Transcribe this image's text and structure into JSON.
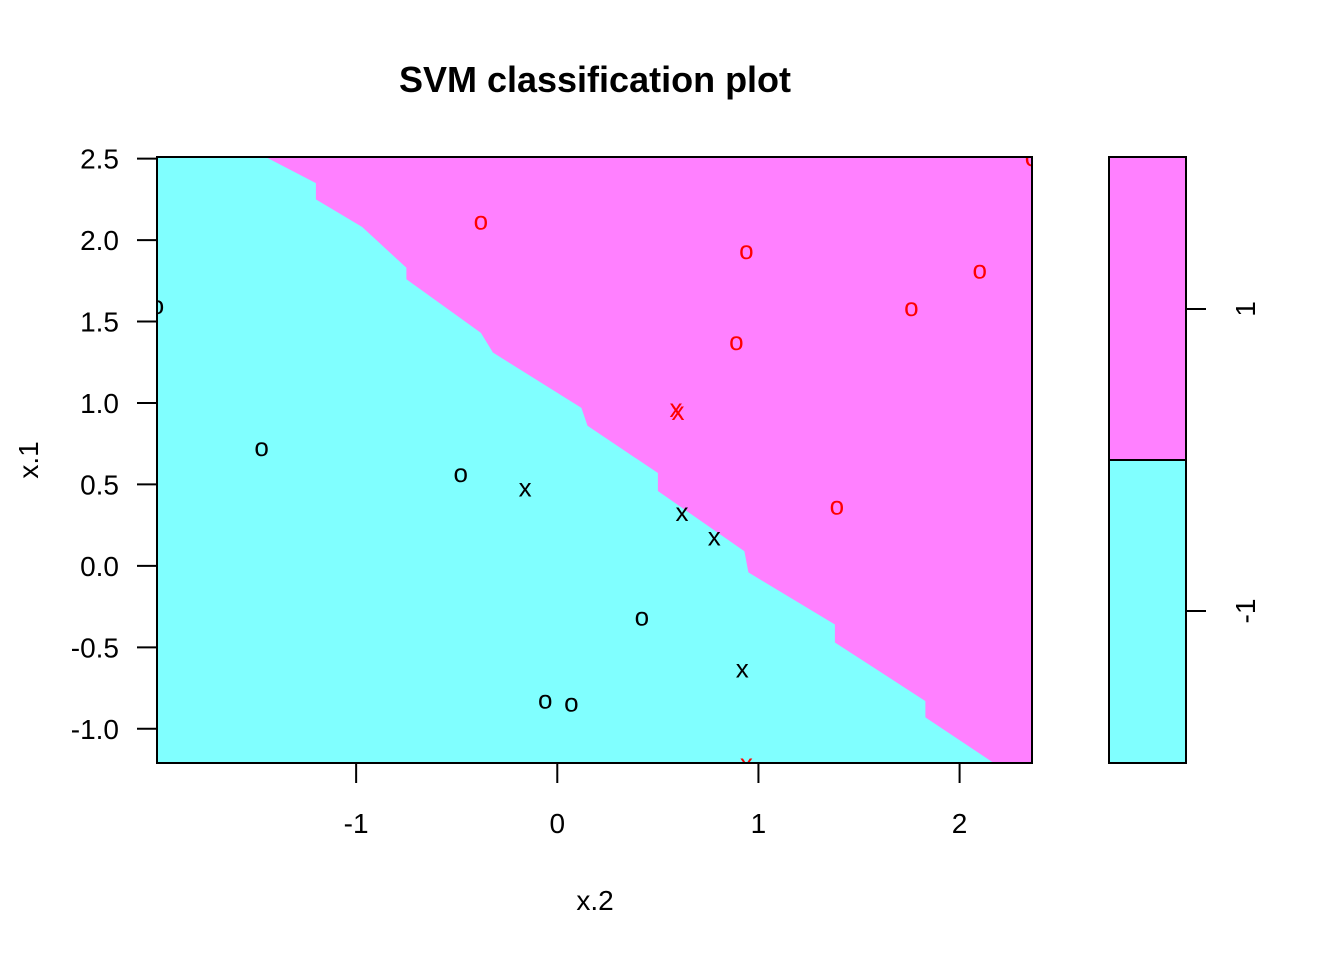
{
  "chart_data": {
    "type": "scatter",
    "title": "SVM classification plot",
    "xlabel": "x.2",
    "ylabel": "x.1",
    "xlim": [
      -1.99,
      2.36
    ],
    "ylim": [
      -1.21,
      2.51
    ],
    "xticks": [
      "-1",
      "0",
      "1",
      "2"
    ],
    "xtick_values": [
      -1,
      0,
      1,
      2
    ],
    "yticks": [
      "2.5",
      "2.0",
      "1.5",
      "1.0",
      "0.5",
      "0.0",
      "-0.5",
      "-1.0"
    ],
    "ytick_values": [
      2.5,
      2.0,
      1.5,
      1.0,
      0.5,
      0.0,
      -0.5,
      -1.0
    ],
    "regions": [
      {
        "class": "-1",
        "color": "#80FFFF"
      },
      {
        "class": "1",
        "color": "#FF80FF"
      }
    ],
    "decision_boundary": [
      {
        "x": -1.45,
        "y": 2.51
      },
      {
        "x": -1.2,
        "y": 2.35
      },
      {
        "x": -1.2,
        "y": 2.25
      },
      {
        "x": -0.97,
        "y": 2.08
      },
      {
        "x": -0.75,
        "y": 1.83
      },
      {
        "x": -0.75,
        "y": 1.76
      },
      {
        "x": -0.38,
        "y": 1.43
      },
      {
        "x": -0.32,
        "y": 1.31
      },
      {
        "x": 0.12,
        "y": 0.97
      },
      {
        "x": 0.15,
        "y": 0.86
      },
      {
        "x": 0.5,
        "y": 0.57
      },
      {
        "x": 0.5,
        "y": 0.46
      },
      {
        "x": 0.93,
        "y": 0.09
      },
      {
        "x": 0.95,
        "y": -0.04
      },
      {
        "x": 1.38,
        "y": -0.36
      },
      {
        "x": 1.38,
        "y": -0.47
      },
      {
        "x": 1.83,
        "y": -0.83
      },
      {
        "x": 1.83,
        "y": -0.93
      },
      {
        "x": 2.17,
        "y": -1.21
      }
    ],
    "legend": {
      "position": "right",
      "labels": [
        "1",
        "-1"
      ]
    },
    "series": [
      {
        "class": "1",
        "color": "#FF0000",
        "points": [
          {
            "x": -0.38,
            "y": 2.12,
            "mark": "o"
          },
          {
            "x": 0.94,
            "y": 1.94,
            "mark": "o"
          },
          {
            "x": 2.1,
            "y": 1.82,
            "mark": "o"
          },
          {
            "x": 1.76,
            "y": 1.59,
            "mark": "o"
          },
          {
            "x": 0.89,
            "y": 1.38,
            "mark": "o"
          },
          {
            "x": 0.59,
            "y": 0.97,
            "mark": "x"
          },
          {
            "x": 0.6,
            "y": 0.95,
            "mark": "x"
          },
          {
            "x": 1.39,
            "y": 0.37,
            "mark": "o"
          },
          {
            "x": 2.36,
            "y": 2.51,
            "mark": "o"
          },
          {
            "x": 0.94,
            "y": -1.21,
            "mark": "x"
          }
        ]
      },
      {
        "class": "-1",
        "color": "#000000",
        "points": [
          {
            "x": -1.99,
            "y": 1.6,
            "mark": "o"
          },
          {
            "x": -1.47,
            "y": 0.73,
            "mark": "o"
          },
          {
            "x": -0.48,
            "y": 0.57,
            "mark": "o"
          },
          {
            "x": -0.16,
            "y": 0.48,
            "mark": "x"
          },
          {
            "x": 0.62,
            "y": 0.33,
            "mark": "x"
          },
          {
            "x": 0.78,
            "y": 0.18,
            "mark": "x"
          },
          {
            "x": 0.42,
            "y": -0.31,
            "mark": "o"
          },
          {
            "x": 0.92,
            "y": -0.63,
            "mark": "x"
          },
          {
            "x": -0.06,
            "y": -0.82,
            "mark": "o"
          },
          {
            "x": 0.07,
            "y": -0.84,
            "mark": "o"
          }
        ]
      }
    ]
  }
}
